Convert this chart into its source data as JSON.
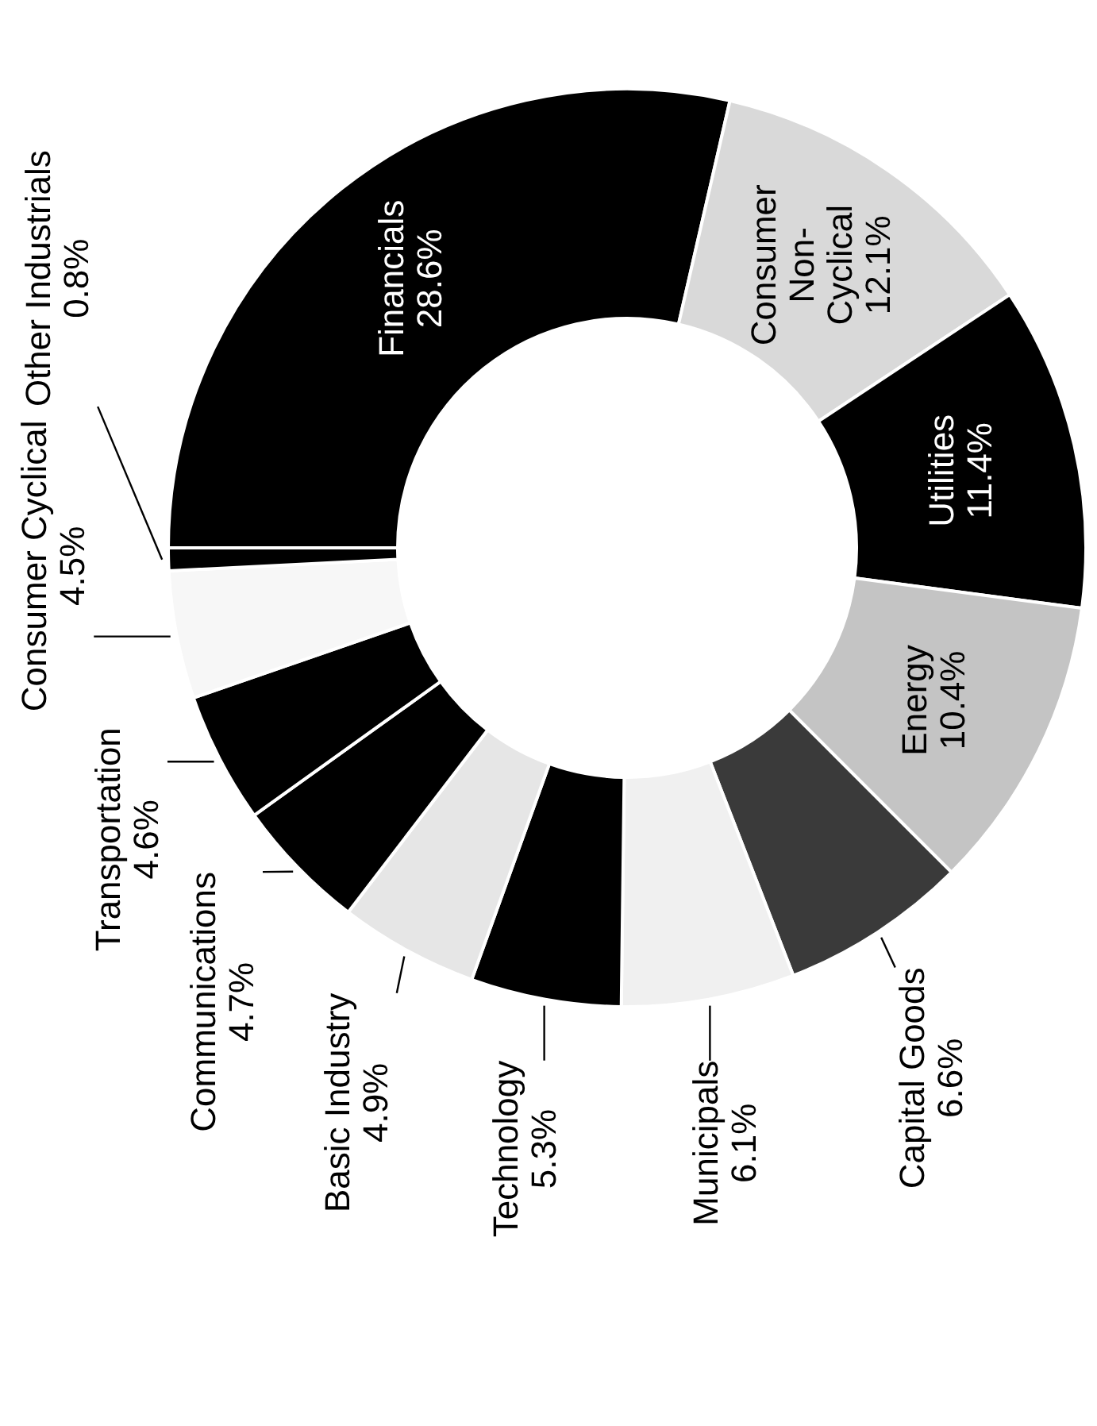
{
  "chart_data": {
    "type": "donut",
    "categories": [
      "Financials",
      "Consumer Non-Cyclical",
      "Utilities",
      "Energy",
      "Capital Goods",
      "Municipals",
      "Technology",
      "Basic Industry",
      "Communications",
      "Transportation",
      "Consumer Cyclical",
      "Other Industrials"
    ],
    "values": [
      28.6,
      12.1,
      11.4,
      10.4,
      6.6,
      6.1,
      5.3,
      4.9,
      4.7,
      4.6,
      4.5,
      0.8
    ],
    "value_labels": [
      "28.6%",
      "12.1%",
      "11.4%",
      "10.4%",
      "6.6%",
      "6.1%",
      "5.3%",
      "4.9%",
      "4.7%",
      "4.6%",
      "4.5%",
      "0.8%"
    ],
    "colors": [
      "#000000",
      "#d9d9d9",
      "#000000",
      "#c4c4c4",
      "#3a3a3a",
      "#f0f0f0",
      "#000000",
      "#e6e6e6",
      "#000000",
      "#000000",
      "#f7f7f7",
      "#000000"
    ],
    "legend": false
  }
}
